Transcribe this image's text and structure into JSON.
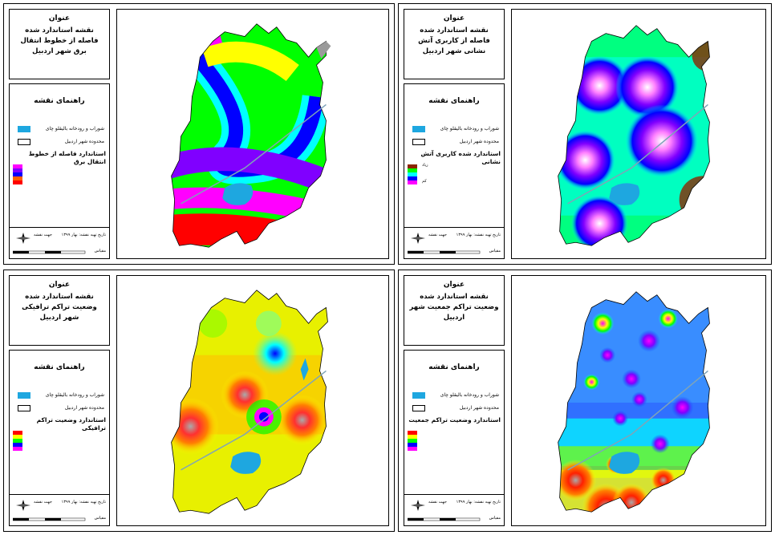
{
  "panels": [
    {
      "id": "power",
      "title_label": "عنوان",
      "title_text": "نقشه استاندارد شده فاصله از خطوط انتقال برق شهر اردبیل",
      "legend_title": "راهنمای نقشه",
      "legend_water": "شوراب و رودخانه باليقلو چای",
      "legend_boundary": "محدوده شهر اردبیل",
      "legend_layer": "استاندارد فاصله از خطوط انتقال برق",
      "ramp": [
        "#ff00ff",
        "#8000ff",
        "#0000ff",
        "#00ffff",
        "#00ff00",
        "#ffff00",
        "#ff0000"
      ],
      "ramp_high": "",
      "ramp_low": "",
      "footer_date": "تاریخ تهیه نقشه: بهار ۱۳۹۹",
      "footer_north": "جهت نقشه",
      "footer_scale_text": "مقیاس"
    },
    {
      "id": "fire",
      "title_label": "عنوان",
      "title_text": "نقشه استاندارد شده فاصله از کاربری آتش نشانی شهر اردبیل",
      "legend_title": "راهنمای نقشه",
      "legend_water": "شوراب و رودخانه باليقلو چای",
      "legend_boundary": "محدوده شهر اردبیل",
      "legend_layer": "استاندارد شده کاربری آتش نشانی",
      "ramp": [
        "#8b2500",
        "#ffff00",
        "#00ff00",
        "#00ffff",
        "#0000ff",
        "#8000ff",
        "#ff00ff"
      ],
      "ramp_high": "زیاد",
      "ramp_low": "کم",
      "footer_date": "تاریخ تهیه نقشه: بهار ۱۳۹۹",
      "footer_north": "جهت نقشه",
      "footer_scale_text": "مقیاس"
    },
    {
      "id": "traffic",
      "title_label": "عنوان",
      "title_text": "نقشه استاندارد شده وضعیت تراکم ترافیکی شهر اردبیل",
      "legend_title": "راهنمای نقشه",
      "legend_water": "شوراب و رودخانه باليقلو چای",
      "legend_boundary": "محدوده شهر اردبیل",
      "legend_layer": "استاندارد وضعیت تراکم ترافیکی",
      "ramp": [
        "#ff0000",
        "#ffff00",
        "#00ff00",
        "#00ffff",
        "#0000ff",
        "#8000ff",
        "#ff00ff"
      ],
      "ramp_high": "",
      "ramp_low": "",
      "footer_date": "تاریخ تهیه نقشه: بهار ۱۳۹۹",
      "footer_north": "جهت نقشه",
      "footer_scale_text": "مقیاس"
    },
    {
      "id": "population",
      "title_label": "عنوان",
      "title_text": "نقشه استاندارد شده وضعیت تراکم جمعیت شهر اردبیل",
      "legend_title": "راهنمای نقشه",
      "legend_water": "شوراب و رودخانه باليقلو چای",
      "legend_boundary": "محدوده شهر اردبیل",
      "legend_layer": "استاندارد وضعیت تراکم جمعیت",
      "ramp": [
        "#ff0000",
        "#ffff00",
        "#00ff00",
        "#00ffff",
        "#0000ff",
        "#8000ff",
        "#ff00ff"
      ],
      "ramp_high": "",
      "ramp_low": "",
      "footer_date": "تاریخ تهیه نقشه: بهار ۱۳۹۹",
      "footer_north": "جهت نقشه",
      "footer_scale_text": "مقیاس"
    }
  ],
  "colors": {
    "water": "#1ea7e0",
    "boundary": "#000000",
    "outside": "#9a9a9a"
  }
}
